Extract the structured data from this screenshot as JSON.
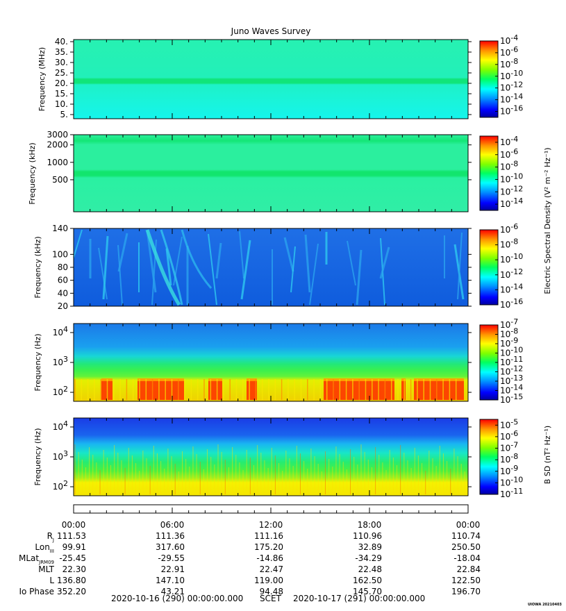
{
  "title": "Juno Waves Survey",
  "footer": {
    "start": "2020-10-16 (290) 00:00:00.000",
    "scet": "SCET",
    "end": "2020-10-17 (291) 00:00:00.000",
    "credit": "UIOWA 20210403"
  },
  "colorbar_labels": {
    "e": "Electric Spectral Density (V² m⁻² Hz⁻¹)",
    "b": "B SD (nT² Hz⁻¹)"
  },
  "chart_data": [
    {
      "type": "heatmap",
      "panel": "HFR-high",
      "ylabel": "Frequency (MHz)",
      "yticks": [
        "40.",
        "35.",
        "30.",
        "25.",
        "20.",
        "15.",
        "10.",
        "5."
      ],
      "ylim": [
        3,
        41
      ],
      "colorbar_ticks": [
        "10-4",
        "10-6",
        "10-8",
        "10-10",
        "10-12",
        "10-14",
        "10-16"
      ],
      "colorbar_range": [
        -17,
        -4
      ]
    },
    {
      "type": "heatmap",
      "panel": "HFR-low",
      "ylabel": "Frequency (kHz)",
      "yticks": [
        "3000",
        "2000",
        "1000",
        "500"
      ],
      "ylim": [
        140,
        3000
      ],
      "yscale": "log",
      "colorbar_ticks": [
        "10-4",
        "10-6",
        "10-8",
        "10-10",
        "10-12",
        "10-14"
      ],
      "colorbar_range": [
        -15,
        -3
      ]
    },
    {
      "type": "heatmap",
      "panel": "LFR-high",
      "ylabel": "Frequency (kHz)",
      "yticks": [
        "140",
        "100",
        "80",
        "60",
        "40",
        "20"
      ],
      "ylim": [
        20,
        140
      ],
      "colorbar_ticks": [
        "10-6",
        "10-8",
        "10-10",
        "10-12",
        "10-14",
        "10-16"
      ],
      "colorbar_range": [
        -16,
        -6
      ]
    },
    {
      "type": "heatmap",
      "panel": "LFR-low E",
      "ylabel": "Frequency (Hz)",
      "yticks": [
        "10^4",
        "10^3",
        "10^2"
      ],
      "ylim": [
        50,
        20000
      ],
      "yscale": "log",
      "colorbar_ticks": [
        "10-7",
        "10-8",
        "10-9",
        "10-10",
        "10-11",
        "10-12",
        "10-13",
        "10-14",
        "10-15"
      ],
      "colorbar_range": [
        -15,
        -7
      ]
    },
    {
      "type": "heatmap",
      "panel": "LFR-low B",
      "ylabel": "Frequency (Hz)",
      "yticks": [
        "10^4",
        "10^3",
        "10^2"
      ],
      "ylim": [
        50,
        20000
      ],
      "yscale": "log",
      "colorbar_ticks": [
        "10-5",
        "10-6",
        "10-7",
        "10-8",
        "10-9",
        "10-10",
        "10-11"
      ],
      "colorbar_range": [
        -11,
        -4.5
      ]
    }
  ],
  "xaxis": {
    "ticks": [
      "00:00",
      "06:00",
      "12:00",
      "18:00",
      "00:00"
    ]
  },
  "ephemeris": {
    "labels": [
      "R",
      "Lon",
      "MLat",
      "MLT",
      "L",
      "Io Phase"
    ],
    "subscripts": [
      "J",
      "III",
      "JRM09",
      "",
      "",
      ""
    ],
    "rows": [
      [
        "111.53",
        "111.36",
        "111.16",
        "110.96",
        "110.74"
      ],
      [
        "99.91",
        "317.60",
        "175.20",
        "32.89",
        "250.50"
      ],
      [
        "-25.45",
        "-29.55",
        "-14.86",
        "-34.29",
        "-18.04"
      ],
      [
        "22.30",
        "22.91",
        "22.47",
        "22.48",
        "22.84"
      ],
      [
        "136.80",
        "147.10",
        "119.00",
        "162.50",
        "122.50"
      ],
      [
        "352.20",
        "43.21",
        "94.48",
        "145.70",
        "196.70"
      ]
    ]
  }
}
